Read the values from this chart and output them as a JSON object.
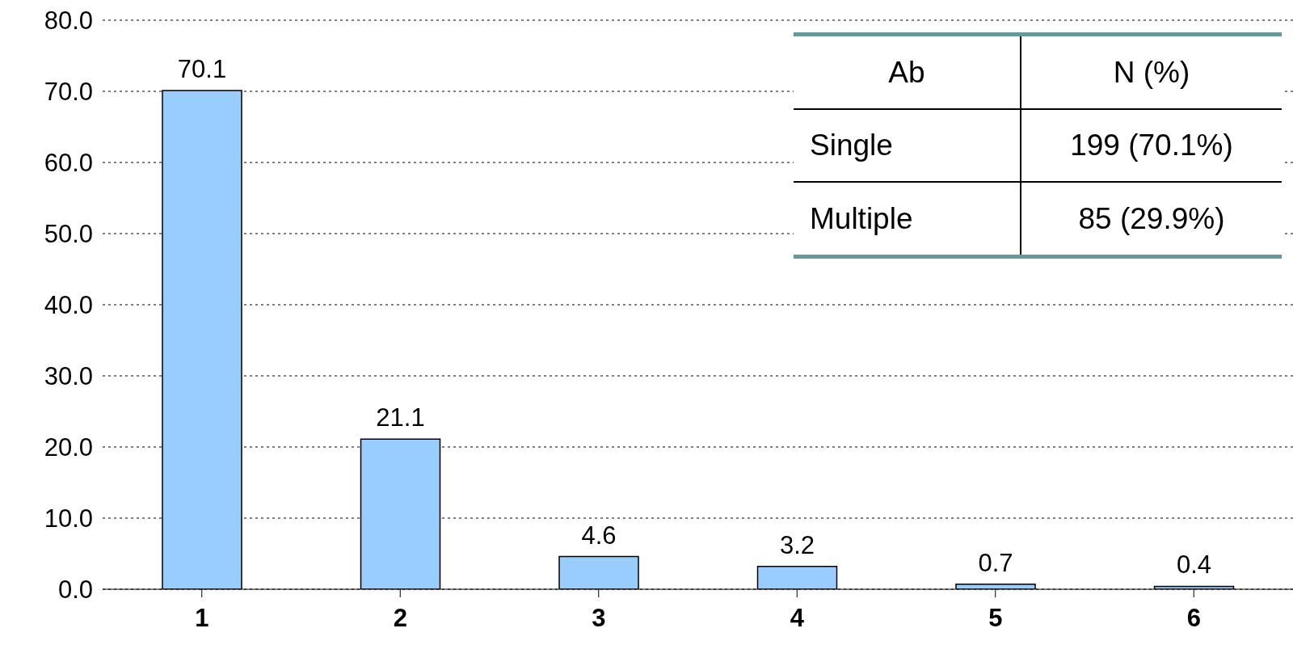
{
  "chart_data": {
    "type": "bar",
    "categories": [
      "1",
      "2",
      "3",
      "4",
      "5",
      "6"
    ],
    "values": [
      70.1,
      21.1,
      4.6,
      3.2,
      0.7,
      0.4
    ],
    "color": "#99ccff",
    "ylim": [
      0,
      80
    ],
    "yticks": [
      {
        "value": 0,
        "label": "0.0"
      },
      {
        "value": 10,
        "label": "10.0"
      },
      {
        "value": 20,
        "label": "20.0"
      },
      {
        "value": 30,
        "label": "30.0"
      },
      {
        "value": 40,
        "label": "40.0"
      },
      {
        "value": 50,
        "label": "50.0"
      },
      {
        "value": 60,
        "label": "60.0"
      },
      {
        "value": 70,
        "label": "70.0"
      },
      {
        "value": 80,
        "label": "80.0"
      }
    ],
    "grid": "y",
    "data_labels": true,
    "annotations": [
      "Ab",
      "N (%)",
      "Single",
      "199 (70.1%)",
      "Multiple",
      "85 (29.9%)"
    ]
  }
}
